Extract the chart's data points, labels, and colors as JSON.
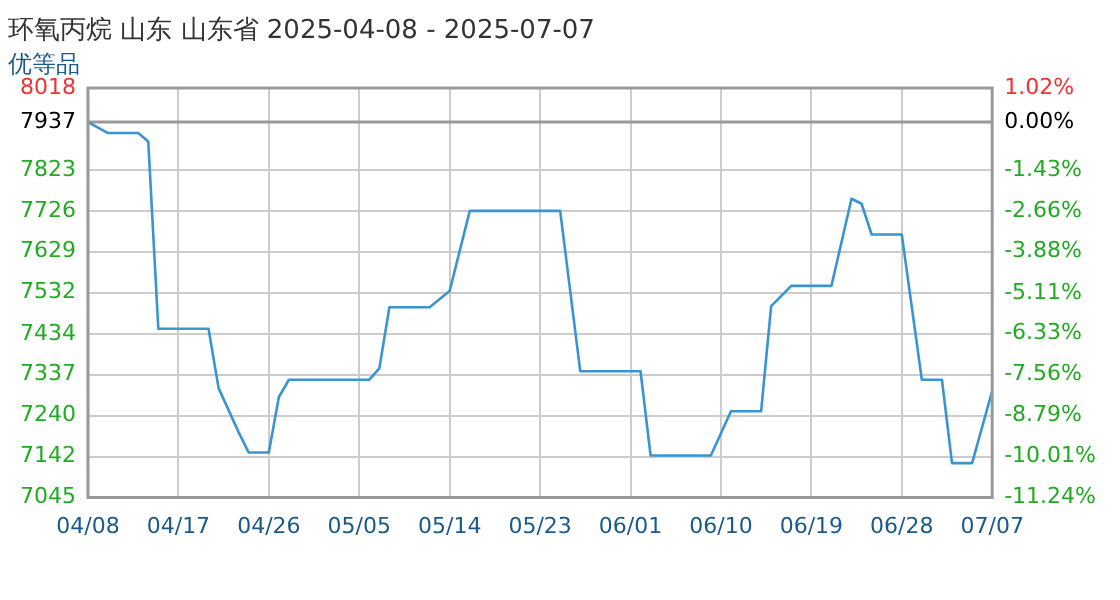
{
  "chart_data": {
    "type": "line",
    "title": "环氧丙烷 山东 山东省 2025-04-08 - 2025-07-07",
    "subtitle": "优等品",
    "x": [
      "2025-04-08",
      "2025-04-10",
      "2025-04-13",
      "2025-04-14",
      "2025-04-15",
      "2025-04-20",
      "2025-04-21",
      "2025-04-23",
      "2025-04-24",
      "2025-04-26",
      "2025-04-27",
      "2025-04-28",
      "2025-05-06",
      "2025-05-07",
      "2025-05-08",
      "2025-05-12",
      "2025-05-14",
      "2025-05-16",
      "2025-05-25",
      "2025-05-27",
      "2025-06-02",
      "2025-06-03",
      "2025-06-09",
      "2025-06-11",
      "2025-06-14",
      "2025-06-15",
      "2025-06-17",
      "2025-06-21",
      "2025-06-23",
      "2025-06-24",
      "2025-06-25",
      "2025-06-28",
      "2025-06-30",
      "2025-07-02",
      "2025-07-03",
      "2025-07-05",
      "2025-07-07"
    ],
    "series": [
      {
        "color": "#3a94d0",
        "values": [
          7937,
          7911,
          7911,
          7891,
          7446,
          7446,
          7305,
          7200,
          7152,
          7152,
          7284,
          7325,
          7325,
          7352,
          7497,
          7497,
          7536,
          7726,
          7726,
          7345,
          7345,
          7145,
          7145,
          7250,
          7250,
          7500,
          7548,
          7548,
          7755,
          7743,
          7670,
          7670,
          7325,
          7325,
          7127,
          7127,
          7298
        ]
      }
    ],
    "xlim": [
      "2025-04-08",
      "2025-07-07"
    ],
    "xticks": [
      {
        "value": "2025-04-08",
        "label": "04/08"
      },
      {
        "value": "2025-04-17",
        "label": "04/17"
      },
      {
        "value": "2025-04-26",
        "label": "04/26"
      },
      {
        "value": "2025-05-05",
        "label": "05/05"
      },
      {
        "value": "2025-05-14",
        "label": "05/14"
      },
      {
        "value": "2025-05-23",
        "label": "05/23"
      },
      {
        "value": "2025-06-01",
        "label": "06/01"
      },
      {
        "value": "2025-06-10",
        "label": "06/10"
      },
      {
        "value": "2025-06-19",
        "label": "06/19"
      },
      {
        "value": "2025-06-28",
        "label": "06/28"
      },
      {
        "value": "2025-07-07",
        "label": "07/07"
      }
    ],
    "ylim": [
      7045,
      8018
    ],
    "yticks": [
      8018,
      7937,
      7823,
      7726,
      7629,
      7532,
      7434,
      7337,
      7240,
      7142,
      7045
    ],
    "y2lim": [
      -11.24,
      1.02
    ],
    "y2ticks": [
      {
        "value": 1.02,
        "label": "1.02%"
      },
      {
        "value": 0,
        "label": "0.00%"
      },
      {
        "value": -1.43,
        "label": "-1.43%"
      },
      {
        "value": -2.66,
        "label": "-2.66%"
      },
      {
        "value": -3.88,
        "label": "-3.88%"
      },
      {
        "value": -5.11,
        "label": "-5.11%"
      },
      {
        "value": -6.33,
        "label": "-6.33%"
      },
      {
        "value": -7.56,
        "label": "-7.56%"
      },
      {
        "value": -8.79,
        "label": "-8.79%"
      },
      {
        "value": -10.01,
        "label": "-10.01%"
      },
      {
        "value": -11.24,
        "label": "-11.24%"
      }
    ],
    "ref_lines": [
      {
        "axis": "y",
        "value": 7937,
        "color": "#999999"
      }
    ],
    "grid": true,
    "legend": false,
    "marker": "none",
    "line_style": "solid"
  }
}
